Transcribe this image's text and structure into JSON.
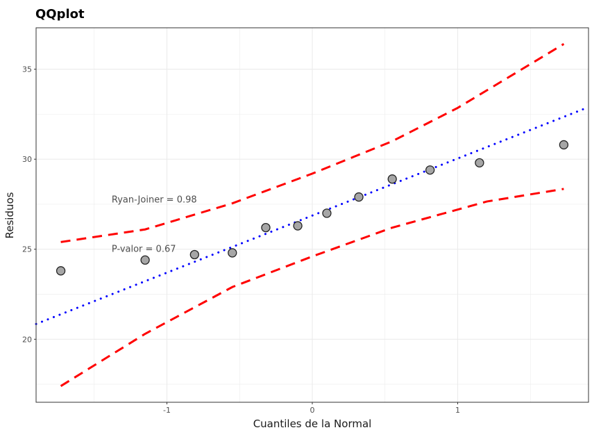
{
  "chart_data": {
    "type": "scatter",
    "title": "QQplot",
    "xlabel": "Cuantiles de la Normal",
    "ylabel": "Residuos",
    "xlim": [
      -1.9,
      1.9
    ],
    "ylim": [
      16.5,
      37.3
    ],
    "xticks": [
      -1,
      0,
      1
    ],
    "xtick_labels": [
      "-1",
      "0",
      "1"
    ],
    "yticks": [
      20,
      25,
      30,
      35
    ],
    "ytick_labels": [
      "20",
      "25",
      "30",
      "35"
    ],
    "grid": true,
    "points": {
      "x": [
        -1.73,
        -1.15,
        -0.81,
        -0.55,
        -0.32,
        -0.1,
        0.1,
        0.32,
        0.55,
        0.81,
        1.15,
        1.73
      ],
      "y": [
        23.8,
        24.4,
        24.7,
        24.8,
        26.2,
        26.3,
        27.0,
        27.9,
        28.9,
        29.4,
        29.8,
        30.8
      ],
      "fill": "#a6a6a6"
    },
    "reference_line": {
      "intercept": 26.87,
      "slope": 3.17,
      "color": "#0000ff",
      "style": "dotted"
    },
    "upper_band": {
      "x": [
        -1.73,
        -1.15,
        -0.55,
        0,
        0.55,
        1.0,
        1.73
      ],
      "y": [
        25.4,
        26.1,
        27.55,
        29.2,
        31.0,
        32.85,
        36.4
      ],
      "color": "#ff0000",
      "style": "dashed"
    },
    "lower_band": {
      "x": [
        -1.73,
        -1.15,
        -0.55,
        0,
        0.55,
        1.2,
        1.73
      ],
      "y": [
        17.4,
        20.3,
        22.9,
        24.6,
        26.2,
        27.65,
        28.35
      ],
      "color": "#ff0000",
      "style": "dashed"
    },
    "annotations": [
      {
        "text": "Ryan-Joiner = 0.98",
        "x": -1.38,
        "y": 27.6
      },
      {
        "text": "P-valor = 0.67",
        "x": -1.38,
        "y": 24.85
      }
    ]
  }
}
